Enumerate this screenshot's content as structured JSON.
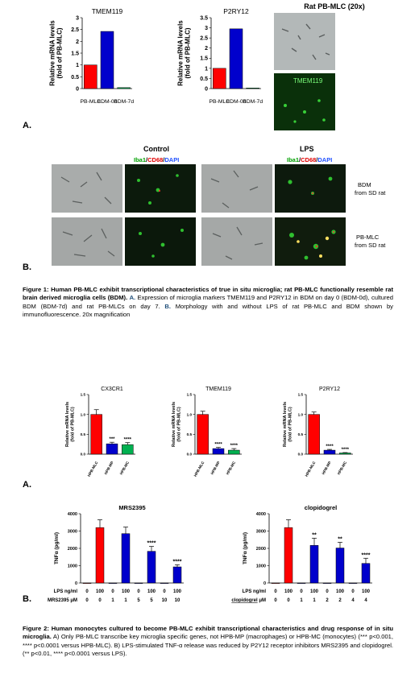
{
  "fig1": {
    "panel_a_letter": "A.",
    "panel_b_letter": "B.",
    "micrograph_title": "Rat PB-MLC (20x)",
    "micrograph_stain_label": "TMEM119",
    "control_title": "Control",
    "lps_title": "LPS",
    "stain_iba1": "Iba1",
    "stain_cd68": "CD68",
    "stain_dapi": "DAPI",
    "slash": "/",
    "row1_label_line1": "BDM",
    "row1_label_line2": "from SD rat",
    "row2_label_line1": "PB-MLC",
    "row2_label_line2": "from SD rat",
    "caption": {
      "title": "Figure 1: Human PB-MLC exhibit transcriptional characteristics of true in situ microglia; rat PB-MLC functionally resemble rat brain derived microglia cells (BDM).",
      "a_letter": "A.",
      "a_text": "Expression of microglia markers TMEM119 and P2RY12 in BDM on day 0 (BDM-0d), cultured BDM (BDM-7d) and rat PB-MLCs on day 7.",
      "b_letter": "B.",
      "b_text": "Morphology with and without LPS of rat PB-MLC and BDM shown by immunofluorescence. 20x magnification"
    }
  },
  "fig2": {
    "panel_a_letter": "A.",
    "panel_b_letter": "B.",
    "caption": {
      "title": "Figure 2: Human monocytes cultured to become PB-MLC exhibit transcriptional characteristics and drug response of in situ microglia.",
      "text": "A) Only PB-MLC transcribe key microglia specific genes, not HPB-MP (macrophages) or HPB-MC (monocytes) (*** p<0.001, **** p<0.0001 versus HPB-MLC). B) LPS-stimulated TNF-α release was reduced by P2Y12 receptor inhibitors MRS2395 and clopidogrel. (** p<0.01, **** p<0.0001 versus LPS)."
    }
  },
  "chart_data": [
    {
      "type": "bar",
      "title": "TMEM119",
      "ylabel": "Relative mRNA levels (fold of PB-MLC)",
      "ylabel_lines": [
        "Relative mRNA levels",
        "(fold of  PB-MLC)"
      ],
      "categories": [
        "PB-MLC",
        "BDM-0d",
        "BDM-7d"
      ],
      "values": [
        1.0,
        2.42,
        0.04
      ],
      "colors": [
        "#ff0000",
        "#0000cc",
        "#00b050"
      ],
      "ylim": [
        0,
        3
      ]
    },
    {
      "type": "bar",
      "title": "P2RY12",
      "ylabel": "Relative mRNA levels (fold of PB-MLC)",
      "ylabel_lines": [
        "Relative mRNA levels",
        "(fold of  PB-MLC)"
      ],
      "categories": [
        "PB-MLC",
        "BDM-0d",
        "BDM-7d"
      ],
      "values": [
        1.0,
        2.95,
        0.03
      ],
      "colors": [
        "#ff0000",
        "#0000cc",
        "#00b050"
      ],
      "ylim": [
        0,
        3.5
      ]
    },
    {
      "type": "bar",
      "title": "CX3CR1",
      "ylabel": "Relative mRNA levels (fold of PB-MLC)",
      "ylabel_lines": [
        "Relative mRNA levels",
        "(fold of  PB-MLC)"
      ],
      "categories": [
        "HPB-MLC",
        "HPB-MP",
        "HPB-MC"
      ],
      "values": [
        1.0,
        0.26,
        0.24
      ],
      "errors": [
        0.12,
        0.04,
        0.05
      ],
      "annotations": [
        "",
        "***",
        "****"
      ],
      "colors": [
        "#ff0000",
        "#0000cc",
        "#00b050"
      ],
      "ylim": [
        0,
        1.5
      ],
      "yticks": [
        "0.0",
        "0.5",
        "1.0",
        "1.5"
      ]
    },
    {
      "type": "bar",
      "title": "TMEM119",
      "ylabel": "Relative mRNA levels (fold of PB-MLC)",
      "ylabel_lines": [
        "Relative mRNA levels",
        "(fold of  PB-MLC)"
      ],
      "categories": [
        "HPB-MLC",
        "HPB-MP",
        "HPB-MC"
      ],
      "values": [
        1.0,
        0.14,
        0.1
      ],
      "errors": [
        0.08,
        0.03,
        0.04
      ],
      "annotations": [
        "",
        "****",
        "****"
      ],
      "colors": [
        "#ff0000",
        "#0000cc",
        "#00b050"
      ],
      "ylim": [
        0,
        1.5
      ],
      "yticks": [
        "0.0",
        "0.5",
        "1.0",
        "1.5"
      ]
    },
    {
      "type": "bar",
      "title": "P2RY12",
      "ylabel": "Relative mRNA levels (fold of PB-MLC)",
      "ylabel_lines": [
        "Relative mRNA levels",
        "(fold of  PB-MLC)"
      ],
      "categories": [
        "HPB-MLC",
        "HPB-MP",
        "HPB-MC"
      ],
      "values": [
        1.0,
        0.1,
        0.03
      ],
      "errors": [
        0.06,
        0.02,
        0.01
      ],
      "annotations": [
        "",
        "****",
        "****"
      ],
      "colors": [
        "#ff0000",
        "#0000cc",
        "#00b050"
      ],
      "ylim": [
        0,
        1.5
      ],
      "yticks": [
        "0.0",
        "0.5",
        "1.0",
        "1.5"
      ]
    },
    {
      "type": "bar",
      "title": "MRS2395",
      "ylabel": "TNFα (pg/ml)",
      "ylim": [
        0,
        4000
      ],
      "yticks": [
        "0",
        "1000",
        "2000",
        "3000",
        "4000"
      ],
      "lps_label": "LPS ng/ml",
      "drug_label": "MRS2395",
      "drug_unit": "μM",
      "lps": [
        "0",
        "100",
        "0",
        "100",
        "0",
        "100",
        "0",
        "100"
      ],
      "drug": [
        "0",
        "0",
        "1",
        "1",
        "5",
        "5",
        "10",
        "10"
      ],
      "values": [
        0,
        3200,
        0,
        2850,
        0,
        1830,
        0,
        930
      ],
      "errors": [
        0,
        450,
        0,
        380,
        0,
        280,
        0,
        120
      ],
      "annotations": [
        "",
        "",
        "",
        "",
        "",
        "****",
        "",
        "****"
      ],
      "colors": [
        "#ff0000",
        "#ff0000",
        "#0000cc",
        "#0000cc",
        "#0000cc",
        "#0000cc",
        "#0000cc",
        "#0000cc"
      ]
    },
    {
      "type": "bar",
      "title": "clopidogrel",
      "ylabel": "TNFα (pg/ml)",
      "ylim": [
        0,
        4000
      ],
      "yticks": [
        "0",
        "1000",
        "2000",
        "3000",
        "4000"
      ],
      "lps_label": "LPS ng/ml",
      "drug_label": "clopidogrel",
      "drug_unit": "μM",
      "lps": [
        "0",
        "100",
        "0",
        "100",
        "0",
        "100",
        "0",
        "100"
      ],
      "drug": [
        "0",
        "0",
        "1",
        "1",
        "2",
        "2",
        "4",
        "4"
      ],
      "values": [
        0,
        3200,
        0,
        2170,
        0,
        2020,
        0,
        1130
      ],
      "errors": [
        0,
        450,
        0,
        420,
        0,
        330,
        0,
        300
      ],
      "annotations": [
        "",
        "",
        "",
        "**",
        "",
        "**",
        "",
        "****"
      ],
      "colors": [
        "#ff0000",
        "#ff0000",
        "#0000cc",
        "#0000cc",
        "#0000cc",
        "#0000cc",
        "#0000cc",
        "#0000cc"
      ]
    }
  ]
}
